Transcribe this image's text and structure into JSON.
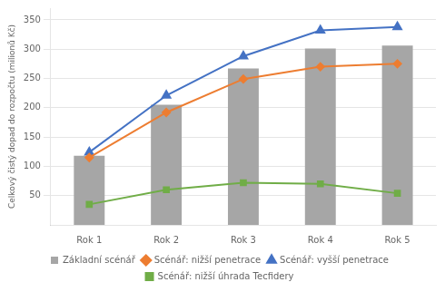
{
  "chart_data": {
    "type": "bar",
    "categories": [
      "Rok 1",
      "Rok 2",
      "Rok 3",
      "Rok 4",
      "Rok 5"
    ],
    "series": [
      {
        "name": "Základní scénář",
        "type": "bar",
        "color": "#a6a6a6",
        "values": [
          118,
          205,
          267,
          301,
          306
        ]
      },
      {
        "name": "Scénář: nižší penetrace",
        "type": "line",
        "color": "#ed7d31",
        "marker": "diamond",
        "values": [
          115,
          192,
          249,
          270,
          275
        ]
      },
      {
        "name": "Scénář: vyšší penetrace",
        "type": "line",
        "color": "#4472c4",
        "marker": "triangle",
        "values": [
          124,
          221,
          288,
          332,
          338
        ]
      },
      {
        "name": "Scénář: nižší úhrada Tecfidery",
        "type": "line",
        "color": "#70ad47",
        "marker": "square",
        "values": [
          35,
          60,
          72,
          70,
          54
        ]
      }
    ],
    "ylabel": "Celkový čistý dopad do rozpočtu (milionů Kč)",
    "ylim": [
      0,
      370
    ],
    "yticks": [
      50,
      100,
      150,
      200,
      250,
      300,
      350
    ],
    "grid": true,
    "legend": "bottom"
  }
}
